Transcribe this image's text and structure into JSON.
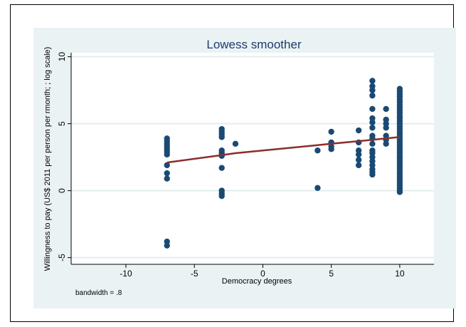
{
  "chart_data": {
    "type": "scatter",
    "title": "Lowess smoother",
    "xlabel": "Democracy  degrees",
    "ylabel": "Willingness to pay  (US$ 2011  per person per rmonth; ; log scale)",
    "xlim": [
      -14,
      12.5
    ],
    "ylim": [
      -5.5,
      10.3
    ],
    "xticks": [
      -10,
      -5,
      0,
      5,
      10
    ],
    "yticks": [
      -5,
      0,
      5,
      10
    ],
    "x_tick_labels": [
      "-10",
      "-5",
      "0",
      "5",
      "10"
    ],
    "y_tick_labels": [
      "-5",
      "0",
      "5",
      "10"
    ],
    "note": "bandwidth = .8",
    "grid": true,
    "colors": {
      "points": "#1a4a73",
      "smoother": "#8b2d2d",
      "plot_bg": "#eaf2f3",
      "title": "#1f3a6e"
    },
    "scatter_series": {
      "name": "",
      "points": [
        [
          -7,
          3.9
        ],
        [
          -7,
          3.7
        ],
        [
          -7,
          3.5
        ],
        [
          -7,
          3.3
        ],
        [
          -7,
          3.1
        ],
        [
          -7,
          2.9
        ],
        [
          -7,
          2.7
        ],
        [
          -7,
          1.9
        ],
        [
          -7,
          1.3
        ],
        [
          -7,
          0.9
        ],
        [
          -7,
          -3.8
        ],
        [
          -7,
          -4.1
        ],
        [
          -3,
          4.6
        ],
        [
          -3,
          4.4
        ],
        [
          -3,
          4.2
        ],
        [
          -3,
          4.0
        ],
        [
          -3,
          3.0
        ],
        [
          -3,
          2.8
        ],
        [
          -3,
          2.6
        ],
        [
          -3,
          1.7
        ],
        [
          -3,
          0.0
        ],
        [
          -3,
          -0.2
        ],
        [
          -3,
          -0.4
        ],
        [
          -2,
          3.5
        ],
        [
          4,
          3.0
        ],
        [
          4,
          0.2
        ],
        [
          5,
          4.4
        ],
        [
          5,
          3.6
        ],
        [
          5,
          3.3
        ],
        [
          5,
          3.1
        ],
        [
          7,
          4.5
        ],
        [
          7,
          3.6
        ],
        [
          7,
          3.0
        ],
        [
          7,
          2.7
        ],
        [
          7,
          2.3
        ],
        [
          7,
          1.9
        ],
        [
          8,
          8.2
        ],
        [
          8,
          7.8
        ],
        [
          8,
          7.5
        ],
        [
          8,
          7.1
        ],
        [
          8,
          6.1
        ],
        [
          8,
          5.4
        ],
        [
          8,
          5.1
        ],
        [
          8,
          4.7
        ],
        [
          8,
          4.1
        ],
        [
          8,
          3.9
        ],
        [
          8,
          3.5
        ],
        [
          8,
          3.0
        ],
        [
          8,
          2.8
        ],
        [
          8,
          2.5
        ],
        [
          8,
          2.2
        ],
        [
          8,
          1.9
        ],
        [
          8,
          1.6
        ],
        [
          8,
          1.4
        ],
        [
          8,
          1.2
        ],
        [
          9,
          6.1
        ],
        [
          9,
          5.3
        ],
        [
          9,
          5.0
        ],
        [
          9,
          4.7
        ],
        [
          9,
          4.1
        ],
        [
          9,
          3.8
        ],
        [
          9,
          3.5
        ],
        [
          10,
          7.6
        ],
        [
          10,
          7.4
        ],
        [
          10,
          7.2
        ],
        [
          10,
          7.0
        ],
        [
          10,
          6.8
        ],
        [
          10,
          6.6
        ],
        [
          10,
          6.4
        ],
        [
          10,
          6.2
        ],
        [
          10,
          6.0
        ],
        [
          10,
          5.8
        ],
        [
          10,
          5.6
        ],
        [
          10,
          5.4
        ],
        [
          10,
          5.2
        ],
        [
          10,
          5.0
        ],
        [
          10,
          4.8
        ],
        [
          10,
          4.6
        ],
        [
          10,
          4.4
        ],
        [
          10,
          4.2
        ],
        [
          10,
          4.0
        ],
        [
          10,
          3.8
        ],
        [
          10,
          3.6
        ],
        [
          10,
          3.4
        ],
        [
          10,
          3.2
        ],
        [
          10,
          3.0
        ],
        [
          10,
          2.8
        ],
        [
          10,
          2.6
        ],
        [
          10,
          2.4
        ],
        [
          10,
          2.2
        ],
        [
          10,
          2.0
        ],
        [
          10,
          1.8
        ],
        [
          10,
          1.6
        ],
        [
          10,
          1.4
        ],
        [
          10,
          1.2
        ],
        [
          10,
          1.0
        ],
        [
          10,
          0.8
        ],
        [
          10,
          0.6
        ],
        [
          10,
          0.4
        ],
        [
          10,
          0.2
        ],
        [
          10,
          0.0
        ],
        [
          10,
          -0.1
        ]
      ]
    },
    "smoother_series": {
      "name": "",
      "x": [
        -7,
        -3,
        -2,
        4,
        5,
        7,
        8,
        9,
        10
      ],
      "y": [
        2.1,
        2.65,
        2.8,
        3.4,
        3.5,
        3.7,
        3.8,
        3.9,
        4.0
      ]
    }
  }
}
